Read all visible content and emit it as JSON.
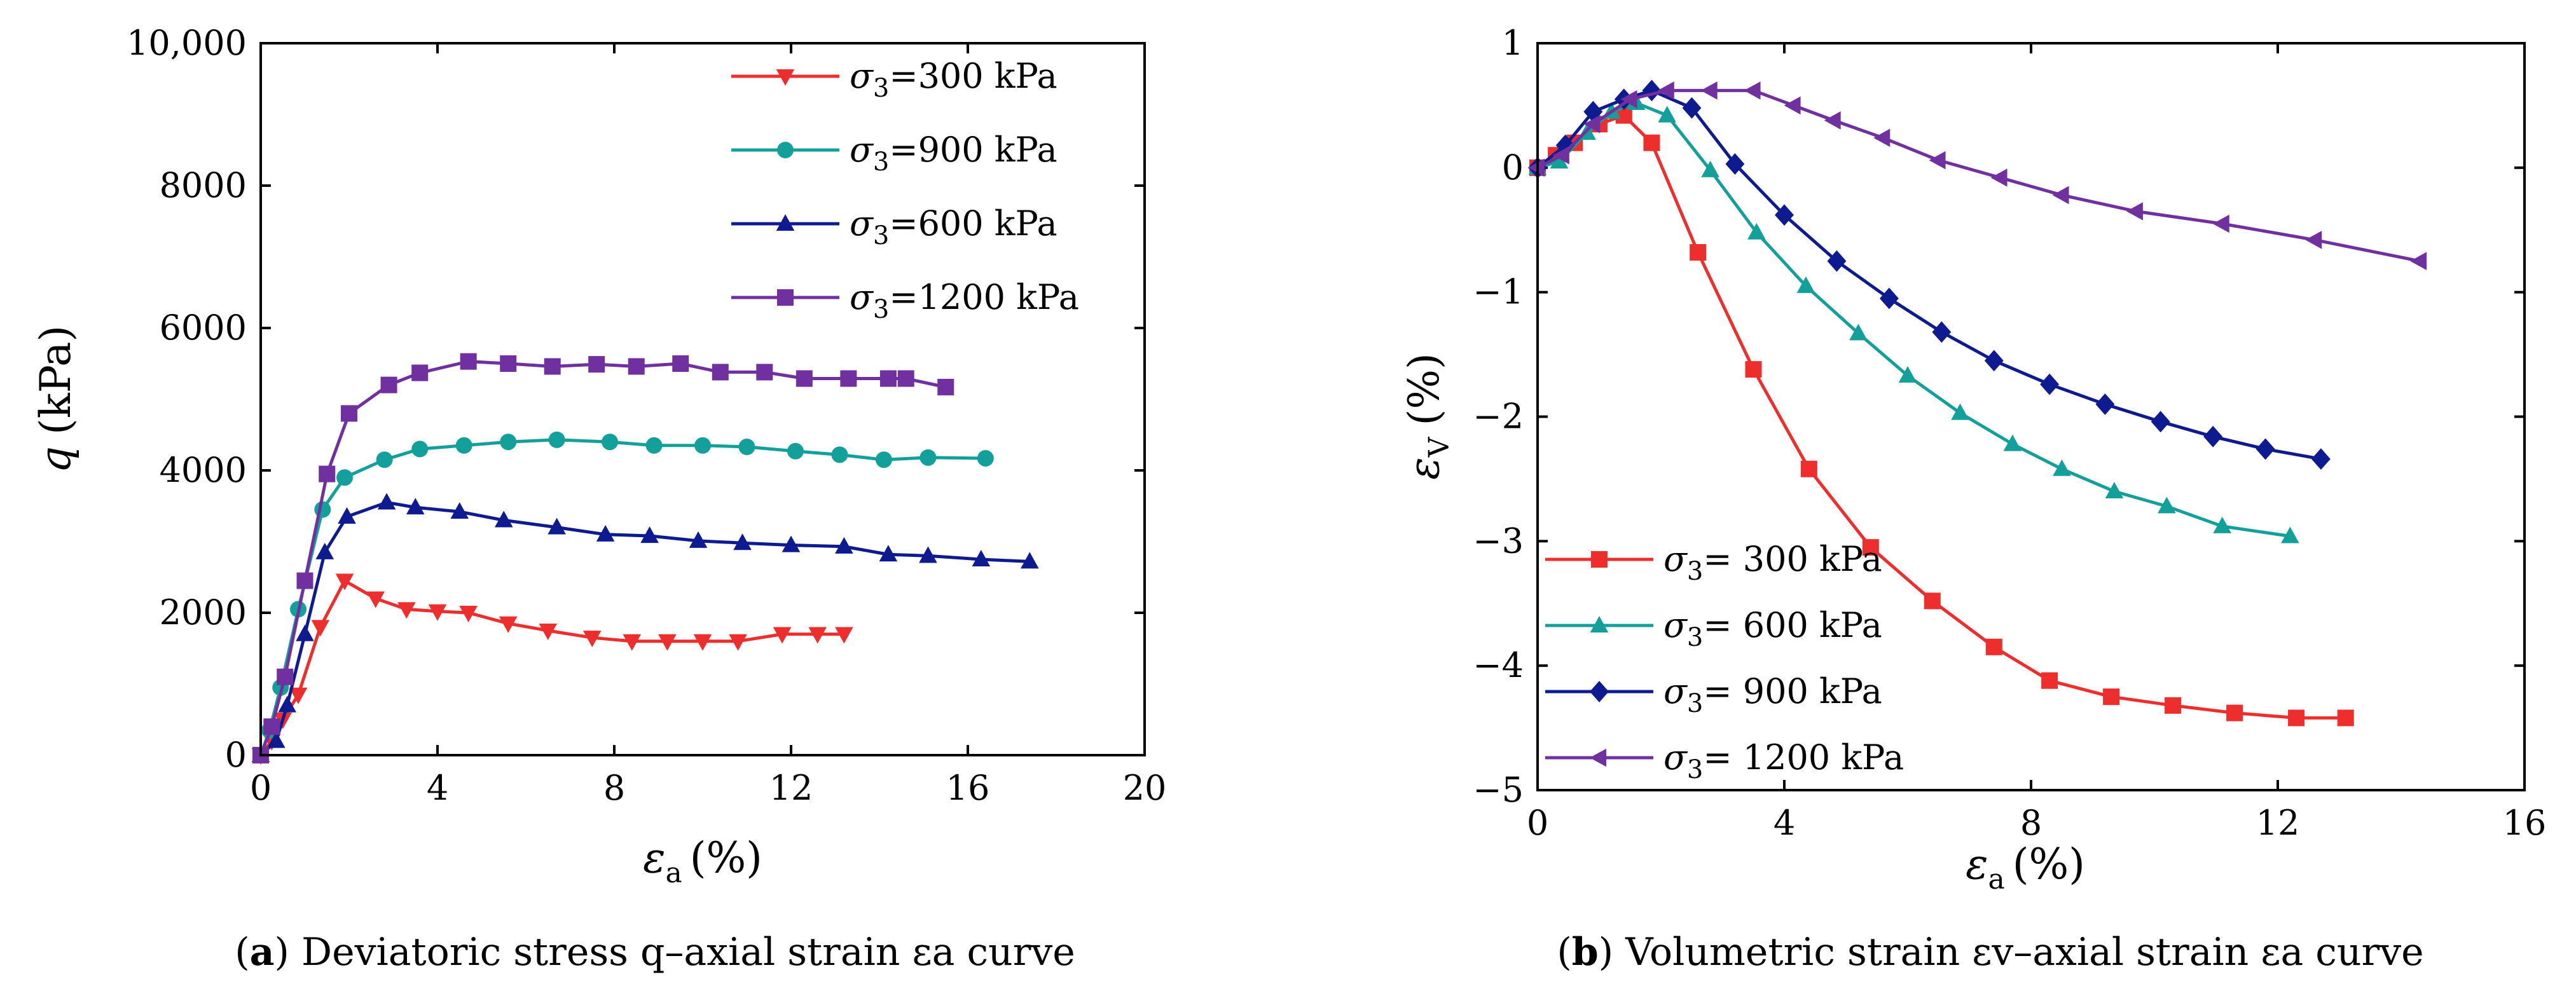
{
  "chart_data": [
    {
      "id": "a",
      "type": "line",
      "xlabel_symbol": "ε",
      "xlabel_sub": "a",
      "xlabel_unit": "(%)",
      "ylabel_symbol": "q",
      "ylabel_unit": "(kPa)",
      "xlim": [
        0,
        20
      ],
      "ylim": [
        0,
        10000
      ],
      "xticks": [
        0,
        4,
        8,
        12,
        16,
        20
      ],
      "xtick_labels": [
        "0",
        "4",
        "8",
        "12",
        "16",
        "20"
      ],
      "yticks": [
        0,
        2000,
        4000,
        6000,
        8000,
        10000
      ],
      "ytick_labels": [
        "0",
        "2000",
        "4000",
        "6000",
        "8000",
        "10,000"
      ],
      "caption_letter": "a",
      "caption_text": "Deviatoric stress q–axial strain εa curve",
      "series": [
        {
          "name": "σ3=300 kPa",
          "label_prefix": "σ",
          "label_sub": "3",
          "label_rest": "=300 kPa",
          "color": "#ee2d2d",
          "marker": "triangle-down",
          "x": [
            0,
            0.25,
            0.5,
            0.85,
            1.35,
            1.9,
            2.6,
            3.3,
            4.0,
            4.7,
            5.6,
            6.5,
            7.5,
            8.4,
            9.2,
            10.0,
            10.8,
            11.8,
            12.6,
            13.2
          ],
          "y": [
            0,
            200,
            500,
            850,
            1800,
            2450,
            2200,
            2050,
            2020,
            2000,
            1850,
            1750,
            1650,
            1600,
            1600,
            1600,
            1600,
            1700,
            1700,
            1700
          ]
        },
        {
          "name": "σ3=900 kPa",
          "label_prefix": "σ",
          "label_sub": "3",
          "label_rest": "=900 kPa",
          "color": "#14a09a",
          "marker": "circle",
          "x": [
            0,
            0.2,
            0.45,
            0.85,
            1.4,
            1.9,
            2.8,
            3.6,
            4.6,
            5.6,
            6.7,
            7.9,
            8.9,
            10.0,
            11.0,
            12.1,
            13.1,
            14.1,
            15.1,
            16.4
          ],
          "y": [
            0,
            350,
            950,
            2050,
            3450,
            3900,
            4150,
            4300,
            4350,
            4400,
            4430,
            4400,
            4350,
            4350,
            4330,
            4270,
            4220,
            4150,
            4180,
            4170
          ]
        },
        {
          "name": "σ3=600 kPa",
          "label_prefix": "σ",
          "label_sub": "3",
          "label_rest": "=600 kPa",
          "color": "#0e1a90",
          "marker": "triangle-up",
          "x": [
            0,
            0.35,
            0.6,
            1.0,
            1.45,
            1.95,
            2.85,
            3.5,
            4.5,
            5.5,
            6.7,
            7.8,
            8.8,
            9.9,
            10.9,
            12.0,
            13.2,
            14.2,
            15.1,
            16.3,
            17.4
          ],
          "y": [
            0,
            200,
            700,
            1700,
            2850,
            3350,
            3550,
            3480,
            3420,
            3300,
            3200,
            3100,
            3080,
            3010,
            2980,
            2950,
            2930,
            2820,
            2800,
            2750,
            2720
          ]
        },
        {
          "name": "σ3=1200 kPa",
          "label_prefix": "σ",
          "label_sub": "3",
          "label_rest": "=1200 kPa",
          "color": "#7030a0",
          "marker": "square",
          "x": [
            0,
            0.25,
            0.55,
            1.0,
            1.5,
            2.0,
            2.9,
            3.6,
            4.7,
            5.6,
            6.6,
            7.6,
            8.5,
            9.5,
            10.4,
            11.4,
            12.3,
            13.3,
            14.2,
            14.6,
            15.5
          ],
          "y": [
            0,
            400,
            1100,
            2450,
            3950,
            4800,
            5200,
            5370,
            5530,
            5500,
            5460,
            5490,
            5460,
            5500,
            5380,
            5380,
            5290,
            5290,
            5290,
            5290,
            5170
          ]
        }
      ]
    },
    {
      "id": "b",
      "type": "line",
      "xlabel_symbol": "ε",
      "xlabel_sub": "a",
      "xlabel_unit": "(%)",
      "ylabel_symbol": "ε",
      "ylabel_sub": "V",
      "ylabel_unit": "(%)",
      "xlim": [
        0,
        16
      ],
      "ylim": [
        -5,
        1
      ],
      "xticks": [
        0,
        4,
        8,
        12,
        16
      ],
      "xtick_labels": [
        "0",
        "4",
        "8",
        "12",
        "16"
      ],
      "yticks": [
        -5,
        -4,
        -3,
        -2,
        -1,
        0,
        1
      ],
      "ytick_labels": [
        "−5",
        "−4",
        "−3",
        "−2",
        "−1",
        "0",
        "1"
      ],
      "caption_letter": "b",
      "caption_text": "Volumetric strain εv–axial strain εa curve",
      "series": [
        {
          "name": "σ3= 300 kPa",
          "label_prefix": "σ",
          "label_sub": "3",
          "label_rest": "= 300 kPa",
          "color": "#ee2d2d",
          "marker": "square",
          "x": [
            0,
            0.3,
            0.6,
            1.0,
            1.4,
            1.85,
            2.6,
            3.5,
            4.4,
            5.4,
            6.4,
            7.4,
            8.3,
            9.3,
            10.3,
            11.3,
            12.3,
            13.1
          ],
          "y": [
            0,
            0.1,
            0.2,
            0.35,
            0.42,
            0.2,
            -0.68,
            -1.62,
            -2.42,
            -3.05,
            -3.48,
            -3.85,
            -4.12,
            -4.25,
            -4.32,
            -4.38,
            -4.42,
            -4.42
          ]
        },
        {
          "name": "σ3= 600 kPa",
          "label_prefix": "σ",
          "label_sub": "3",
          "label_rest": "= 600 kPa",
          "color": "#14a09a",
          "marker": "triangle-up",
          "x": [
            0,
            0.35,
            0.8,
            1.2,
            1.6,
            2.1,
            2.8,
            3.55,
            4.35,
            5.2,
            6.0,
            6.85,
            7.7,
            8.5,
            9.35,
            10.2,
            11.1,
            12.2
          ],
          "y": [
            0,
            0.05,
            0.28,
            0.45,
            0.52,
            0.42,
            -0.02,
            -0.52,
            -0.95,
            -1.33,
            -1.67,
            -1.97,
            -2.22,
            -2.42,
            -2.6,
            -2.72,
            -2.88,
            -2.96
          ]
        },
        {
          "name": "σ3= 900 kPa",
          "label_prefix": "σ",
          "label_sub": "3",
          "label_rest": "= 900 kPa",
          "color": "#0e1a90",
          "marker": "diamond",
          "x": [
            0,
            0.45,
            0.9,
            1.4,
            1.85,
            2.5,
            3.2,
            4.0,
            4.85,
            5.7,
            6.55,
            7.4,
            8.3,
            9.2,
            10.1,
            10.95,
            11.8,
            12.7
          ],
          "y": [
            0,
            0.18,
            0.45,
            0.55,
            0.62,
            0.48,
            0.03,
            -0.38,
            -0.75,
            -1.05,
            -1.32,
            -1.55,
            -1.74,
            -1.9,
            -2.04,
            -2.16,
            -2.26,
            -2.34
          ]
        },
        {
          "name": "σ3= 1200 kPa",
          "label_prefix": "σ",
          "label_sub": "3",
          "label_rest": "= 1200 kPa",
          "color": "#7030a0",
          "marker": "triangle-left",
          "x": [
            0,
            0.4,
            0.9,
            1.5,
            2.1,
            2.8,
            3.5,
            4.15,
            4.8,
            5.6,
            6.5,
            7.5,
            8.5,
            9.7,
            11.1,
            12.6,
            14.3
          ],
          "y": [
            0,
            0.1,
            0.35,
            0.55,
            0.62,
            0.62,
            0.62,
            0.5,
            0.38,
            0.24,
            0.06,
            -0.08,
            -0.22,
            -0.35,
            -0.45,
            -0.58,
            -0.75
          ]
        }
      ]
    }
  ]
}
